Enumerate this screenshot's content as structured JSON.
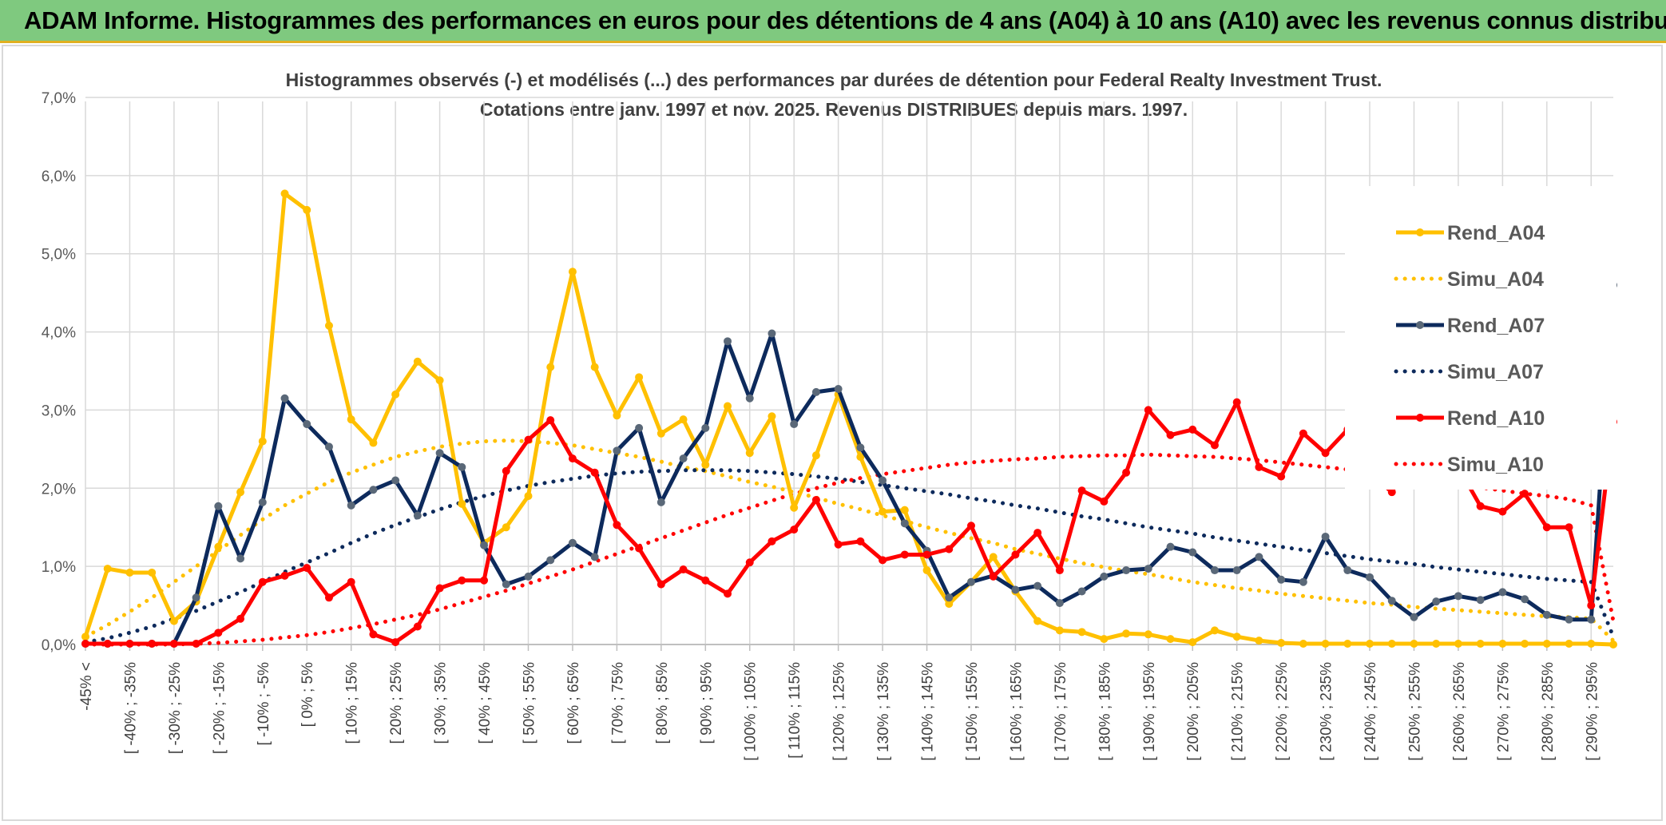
{
  "banner": {
    "title": "ADAM Informe. Histogrammes des performances en euros pour des détentions de 4 ans (A04) à 10 ans (A10) avec les revenus connus distribués"
  },
  "colors": {
    "a04": "#ffc000",
    "a07": "#0d2a5c",
    "a07_marker": "#5a6878",
    "a10": "#ff0000",
    "banner": "#7fc97f",
    "grid": "#d9d9d9"
  },
  "chart_data": {
    "type": "line",
    "title": "Histogrammes observés (-) et modélisés (...) des performances par durées de détention pour Federal Realty Investment Trust.",
    "subtitle": "Cotations entre janv. 1997 et nov. 2025. Revenus DISTRIBUES depuis mars. 1997.",
    "ylim": [
      0,
      7
    ],
    "ytick_labels": [
      "0,0%",
      "1,0%",
      "2,0%",
      "3,0%",
      "4,0%",
      "5,0%",
      "6,0%",
      "7,0%"
    ],
    "legend_position": "right",
    "x_labels": [
      "-45% <",
      "[ -40% ; -35%",
      "[ -30% ; -25%",
      "[ -20% ; -15%",
      "[ -10% ; -5%",
      "[ 0% ; 5%",
      "[ 10% ; 15%",
      "[ 20% ; 25%",
      "[ 30% ; 35%",
      "[ 40% ; 45%",
      "[ 50% ; 55%",
      "[ 60% ; 65%",
      "[ 70% ; 75%",
      "[ 80% ; 85%",
      "[ 90% ; 95%",
      "[ 100% ; 105%",
      "[ 110% ; 115%",
      "[ 120% ; 125%",
      "[ 130% ; 135%",
      "[ 140% ; 145%",
      "[ 150% ; 155%",
      "[ 160% ; 165%",
      "[ 170% ; 175%",
      "[ 180% ; 185%",
      "[ 190% ; 195%",
      "[ 200% ; 205%",
      "[ 210% ; 215%",
      "[ 220% ; 225%",
      "[ 230% ; 235%",
      "[ 240% ; 245%",
      "[ 250% ; 255%",
      "[ 260% ; 265%",
      "[ 270% ; 275%",
      "[ 280% ; 285%",
      "[ 290% ; 295%"
    ],
    "series": [
      {
        "name": "Rend_A04",
        "style": "solid",
        "values": [
          0.1,
          0.97,
          0.92,
          0.92,
          0.3,
          0.55,
          1.25,
          1.95,
          2.6,
          5.77,
          5.56,
          4.08,
          2.88,
          2.58,
          3.2,
          3.62,
          3.38,
          1.8,
          1.3,
          1.5,
          1.9,
          3.55,
          4.77,
          3.55,
          2.93,
          3.42,
          2.7,
          2.88,
          2.3,
          3.05,
          2.45,
          2.92,
          1.75,
          2.42,
          3.2,
          2.4,
          1.7,
          1.72,
          0.95,
          0.52,
          0.8,
          1.12,
          0.68,
          0.3,
          0.18,
          0.16,
          0.07,
          0.14,
          0.13,
          0.07,
          0.03,
          0.18,
          0.1,
          0.05,
          0.02,
          0.01,
          0.01,
          0.01,
          0.01,
          0.01,
          0.01,
          0.01,
          0.01,
          0.01,
          0.01,
          0.01,
          0.01,
          0.01,
          0.01,
          0.0
        ]
      },
      {
        "name": "Simu_A04",
        "style": "dotted",
        "values": [
          0.1,
          0.25,
          0.42,
          0.6,
          0.8,
          1.0,
          1.2,
          1.4,
          1.6,
          1.78,
          1.93,
          2.08,
          2.2,
          2.3,
          2.4,
          2.47,
          2.53,
          2.57,
          2.6,
          2.61,
          2.6,
          2.58,
          2.55,
          2.5,
          2.45,
          2.4,
          2.34,
          2.27,
          2.22,
          2.15,
          2.08,
          2.02,
          1.95,
          1.88,
          1.8,
          1.73,
          1.65,
          1.58,
          1.5,
          1.43,
          1.36,
          1.3,
          1.22,
          1.16,
          1.1,
          1.04,
          0.99,
          0.94,
          0.9,
          0.85,
          0.8,
          0.76,
          0.72,
          0.69,
          0.65,
          0.62,
          0.59,
          0.56,
          0.53,
          0.51,
          0.48,
          0.46,
          0.44,
          0.42,
          0.4,
          0.38,
          0.36,
          0.35,
          0.33,
          0.05
        ]
      },
      {
        "name": "Rend_A07",
        "style": "solid",
        "values": [
          0.01,
          0.01,
          0.01,
          0.01,
          0.01,
          0.6,
          1.77,
          1.1,
          1.82,
          3.15,
          2.82,
          2.53,
          1.78,
          1.98,
          2.1,
          1.65,
          2.45,
          2.27,
          1.27,
          0.77,
          0.87,
          1.08,
          1.3,
          1.12,
          2.48,
          2.77,
          1.82,
          2.38,
          2.77,
          3.88,
          3.15,
          3.98,
          2.82,
          3.23,
          3.27,
          2.52,
          2.1,
          1.55,
          1.2,
          0.6,
          0.8,
          0.88,
          0.7,
          0.75,
          0.53,
          0.68,
          0.87,
          0.95,
          0.97,
          1.25,
          1.18,
          0.95,
          0.95,
          1.12,
          0.83,
          0.8,
          1.38,
          0.95,
          0.86,
          0.56,
          0.35,
          0.55,
          0.62,
          0.57,
          0.67,
          0.58,
          0.38,
          0.32,
          0.32,
          4.6
        ]
      },
      {
        "name": "Simu_A07",
        "style": "dotted",
        "values": [
          0.03,
          0.08,
          0.15,
          0.23,
          0.33,
          0.43,
          0.55,
          0.67,
          0.8,
          0.93,
          1.05,
          1.17,
          1.3,
          1.42,
          1.53,
          1.63,
          1.73,
          1.82,
          1.9,
          1.97,
          2.03,
          2.08,
          2.12,
          2.16,
          2.19,
          2.21,
          2.22,
          2.23,
          2.23,
          2.23,
          2.22,
          2.2,
          2.18,
          2.15,
          2.12,
          2.08,
          2.04,
          2.0,
          1.96,
          1.92,
          1.87,
          1.83,
          1.78,
          1.74,
          1.69,
          1.64,
          1.6,
          1.55,
          1.5,
          1.46,
          1.42,
          1.37,
          1.33,
          1.29,
          1.25,
          1.21,
          1.17,
          1.13,
          1.09,
          1.06,
          1.03,
          0.99,
          0.96,
          0.93,
          0.9,
          0.87,
          0.84,
          0.82,
          0.8,
          0.1
        ]
      },
      {
        "name": "Rend_A10",
        "style": "solid",
        "values": [
          0.01,
          0.01,
          0.01,
          0.01,
          0.01,
          0.01,
          0.15,
          0.33,
          0.8,
          0.88,
          0.98,
          0.6,
          0.8,
          0.13,
          0.03,
          0.23,
          0.72,
          0.82,
          0.82,
          2.22,
          2.62,
          2.87,
          2.38,
          2.2,
          1.53,
          1.23,
          0.77,
          0.96,
          0.82,
          0.65,
          1.05,
          1.32,
          1.47,
          1.85,
          1.28,
          1.32,
          1.08,
          1.15,
          1.15,
          1.22,
          1.52,
          0.87,
          1.15,
          1.43,
          0.95,
          1.97,
          1.83,
          2.2,
          3.0,
          2.68,
          2.75,
          2.55,
          3.1,
          2.27,
          2.15,
          2.7,
          2.45,
          2.75,
          2.2,
          1.95,
          2.48,
          2.55,
          2.27,
          1.77,
          1.7,
          1.93,
          1.5,
          1.5,
          0.5,
          2.85
        ]
      },
      {
        "name": "Simu_A10",
        "style": "dotted",
        "values": [
          0.0,
          0.0,
          0.0,
          0.0,
          0.0,
          0.01,
          0.02,
          0.04,
          0.06,
          0.09,
          0.12,
          0.16,
          0.21,
          0.26,
          0.32,
          0.38,
          0.45,
          0.53,
          0.61,
          0.69,
          0.78,
          0.87,
          0.96,
          1.06,
          1.16,
          1.26,
          1.36,
          1.46,
          1.56,
          1.66,
          1.75,
          1.84,
          1.93,
          2.0,
          2.07,
          2.13,
          2.18,
          2.22,
          2.26,
          2.3,
          2.33,
          2.35,
          2.37,
          2.38,
          2.4,
          2.41,
          2.42,
          2.42,
          2.43,
          2.42,
          2.41,
          2.4,
          2.38,
          2.36,
          2.33,
          2.3,
          2.27,
          2.24,
          2.2,
          2.17,
          2.13,
          2.09,
          2.05,
          2.01,
          1.97,
          1.93,
          1.9,
          1.86,
          1.78,
          0.3
        ]
      }
    ]
  }
}
